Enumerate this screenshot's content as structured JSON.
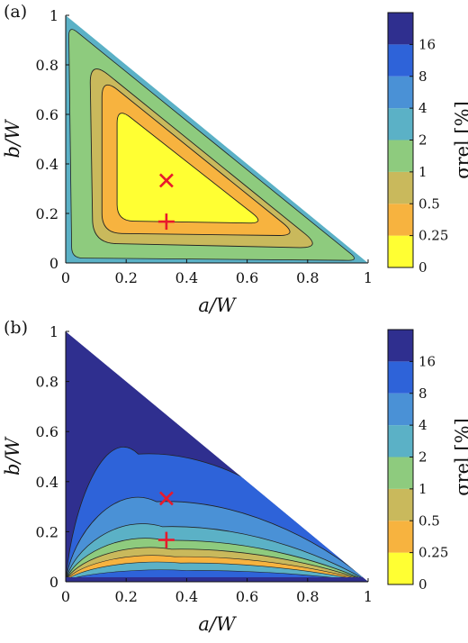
{
  "colors": {
    "bins": [
      "#ffff33",
      "#f7b33f",
      "#c9b95c",
      "#8ecb7e",
      "#5bb1c6",
      "#4a91d6",
      "#2e63d9",
      "#2f2f8f"
    ],
    "marker": "#e8192c",
    "frame": "#111111",
    "contour": "#222222"
  },
  "chart_data": [
    {
      "type": "heatmap",
      "panel_label": "(a)",
      "xlabel": "a/W",
      "ylabel": "b/W",
      "xlim": [
        0,
        1
      ],
      "ylim": [
        0,
        1
      ],
      "xticks": [
        "0",
        "0.2",
        "0.4",
        "0.6",
        "0.8",
        "1"
      ],
      "yticks": [
        "0",
        "0.2",
        "0.4",
        "0.6",
        "0.8",
        "1"
      ],
      "domain": "triangle a/W + b/W <= 1",
      "colorbar": {
        "label": "σrel [%]",
        "ticks": [
          "0",
          "0.25",
          "0.5",
          "1",
          "2",
          "4",
          "8",
          "16"
        ]
      },
      "contours": [
        {
          "level": "0",
          "color_bin": 0
        },
        {
          "level": "0.25",
          "color_bin": 1,
          "approx_region": [
            [
              0.09,
              0.08
            ],
            [
              0.85,
              0.06
            ],
            [
              0.08,
              0.82
            ]
          ]
        },
        {
          "level": "0.5",
          "color_bin": 2,
          "approx_region": [
            [
              0.12,
              0.12
            ],
            [
              0.77,
              0.11
            ],
            [
              0.12,
              0.75
            ]
          ]
        },
        {
          "level": "1",
          "color_bin": 3,
          "approx_region": [
            [
              0.17,
              0.17
            ],
            [
              0.66,
              0.16
            ],
            [
              0.17,
              0.63
            ]
          ]
        }
      ],
      "markers": [
        {
          "symbol": "×",
          "x": 0.333,
          "y": 0.333
        },
        {
          "symbol": "+",
          "x": 0.333,
          "y": 0.167
        }
      ]
    },
    {
      "type": "heatmap",
      "panel_label": "(b)",
      "xlabel": "a/W",
      "ylabel": "b/W",
      "xlim": [
        0,
        1
      ],
      "ylim": [
        0,
        1
      ],
      "xticks": [
        "0",
        "0.2",
        "0.4",
        "0.6",
        "0.8",
        "1"
      ],
      "yticks": [
        "0",
        "0.2",
        "0.4",
        "0.6",
        "0.8",
        "1"
      ],
      "domain": "triangle a/W + b/W <= 1",
      "colorbar": {
        "label": "σrel [%]",
        "ticks": [
          "0",
          "0.25",
          "0.5",
          "1",
          "2",
          "4",
          "8",
          "16"
        ]
      },
      "contours": [
        {
          "level": "16",
          "color_bin": 6,
          "peak": [
            0.24,
            0.51
          ]
        },
        {
          "level": "8",
          "color_bin": 5,
          "peak": [
            0.3,
            0.32
          ]
        },
        {
          "level": "4",
          "color_bin": 4,
          "peak": [
            0.32,
            0.22
          ]
        },
        {
          "level": "2",
          "color_bin": 3,
          "peak": [
            0.33,
            0.165
          ]
        },
        {
          "level": "1",
          "color_bin": 2,
          "peak": [
            0.35,
            0.13
          ]
        }
      ],
      "markers": [
        {
          "symbol": "×",
          "x": 0.333,
          "y": 0.333
        },
        {
          "symbol": "+",
          "x": 0.333,
          "y": 0.167
        }
      ]
    }
  ]
}
